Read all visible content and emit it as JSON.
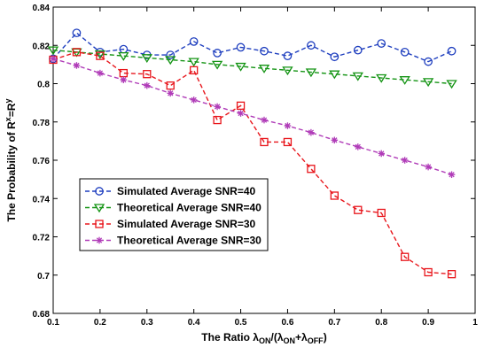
{
  "chart_data": {
    "type": "line",
    "x": [
      0.1,
      0.15,
      0.2,
      0.25,
      0.3,
      0.35,
      0.4,
      0.45,
      0.5,
      0.55,
      0.6,
      0.65,
      0.7,
      0.75,
      0.8,
      0.85,
      0.9,
      0.95
    ],
    "xlim": [
      0.1,
      1.0
    ],
    "ylim": [
      0.68,
      0.84
    ],
    "xticks": [
      "0.1",
      "0.2",
      "0.3",
      "0.4",
      "0.5",
      "0.6",
      "0.7",
      "0.8",
      "0.9",
      "1"
    ],
    "yticks": [
      "0.68",
      "0.7",
      "0.72",
      "0.74",
      "0.76",
      "0.78",
      "0.8",
      "0.82",
      "0.84"
    ],
    "xlabel_main": "The Ratio λ",
    "xlabel_sub1": "ON",
    "xlabel_mid": "/(λ",
    "xlabel_sub2": "ON",
    "xlabel_plus": "+λ",
    "xlabel_sub3": "OFF",
    "xlabel_end": ")",
    "ylabel_main": "The Probability of R",
    "ylabel_sup1": "x",
    "ylabel_eq": "=R",
    "ylabel_sup2": "y",
    "legend_position": "center-left",
    "grid": false,
    "series": [
      {
        "name": "Simulated  Average  SNR=40",
        "color": "#1f3fbf",
        "marker": "circle",
        "values": [
          0.813,
          0.8265,
          0.8165,
          0.818,
          0.815,
          0.815,
          0.822,
          0.816,
          0.819,
          0.817,
          0.8145,
          0.82,
          0.814,
          0.8175,
          0.821,
          0.8165,
          0.8115,
          0.817
        ]
      },
      {
        "name": "Theoretical  Average  SNR=40",
        "color": "#149414",
        "marker": "triangle-down",
        "values": [
          0.8175,
          0.8165,
          0.8155,
          0.8145,
          0.8135,
          0.8125,
          0.8115,
          0.81,
          0.809,
          0.808,
          0.807,
          0.806,
          0.805,
          0.804,
          0.803,
          0.802,
          0.801,
          0.8
        ]
      },
      {
        "name": "Simulated  Average  SNR=30",
        "color": "#e8161c",
        "marker": "square",
        "values": [
          0.8125,
          0.8165,
          0.8145,
          0.8055,
          0.805,
          0.799,
          0.807,
          0.781,
          0.7885,
          0.7695,
          0.7695,
          0.7555,
          0.7415,
          0.734,
          0.7325,
          0.7095,
          0.7015,
          0.7005
        ]
      },
      {
        "name": "Theoretical  Average  SNR=30",
        "color": "#b03cb8",
        "marker": "asterisk",
        "values": [
          0.813,
          0.8095,
          0.8055,
          0.802,
          0.799,
          0.795,
          0.7915,
          0.788,
          0.7845,
          0.781,
          0.778,
          0.7745,
          0.7705,
          0.767,
          0.7635,
          0.76,
          0.7565,
          0.7525
        ]
      }
    ]
  }
}
